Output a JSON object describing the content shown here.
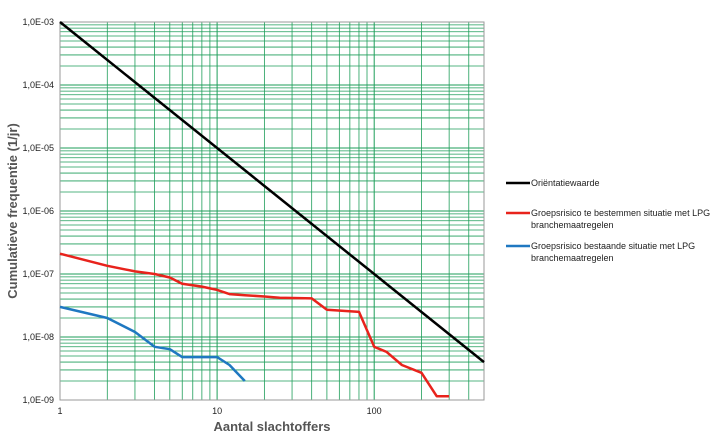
{
  "chart_data": {
    "type": "line",
    "title": "",
    "xlabel": "Aantal slachtoffers",
    "ylabel": "Cumulatieve frequentie (1/jr)",
    "x_scale": "log",
    "y_scale": "log",
    "xlim": [
      1,
      500
    ],
    "ylim": [
      1e-09,
      0.001
    ],
    "grid": true,
    "legend_position": "right",
    "x_tick_labels": [
      {
        "value": 1,
        "label": "1"
      },
      {
        "value": 10,
        "label": "10"
      },
      {
        "value": 100,
        "label": "100"
      }
    ],
    "y_tick_labels": [
      {
        "value": 0.001,
        "label": "1,0E-03"
      },
      {
        "value": 0.0001,
        "label": "1,0E-04"
      },
      {
        "value": 1e-05,
        "label": "1,0E-05"
      },
      {
        "value": 1e-06,
        "label": "1,0E-06"
      },
      {
        "value": 1e-07,
        "label": "1,0E-07"
      },
      {
        "value": 1e-08,
        "label": "1,0E-08"
      },
      {
        "value": 1e-09,
        "label": "1,0E-09"
      }
    ],
    "colors": {
      "grid": "#1e9e5a",
      "frame": "#9a9a9a"
    },
    "series": [
      {
        "name": "Oriëntatiewaarde",
        "legend_lines": [
          "Oriëntatiewaarde"
        ],
        "color": "#000000",
        "points": [
          [
            1,
            0.001
          ],
          [
            500,
            4e-09
          ]
        ]
      },
      {
        "name": "Groepsrisico te bestemmen situatie met LPG branchemaatregelen",
        "legend_lines": [
          "Groepsrisico te bestemmen situatie met LPG",
          "branchemaatregelen"
        ],
        "color": "#e8231c",
        "points": [
          [
            1,
            2.1e-07
          ],
          [
            2,
            1.35e-07
          ],
          [
            3,
            1.1e-07
          ],
          [
            4,
            1e-07
          ],
          [
            5,
            8.8e-08
          ],
          [
            6,
            7e-08
          ],
          [
            8,
            6.3e-08
          ],
          [
            10,
            5.6e-08
          ],
          [
            12,
            4.8e-08
          ],
          [
            15,
            4.6e-08
          ],
          [
            20,
            4.4e-08
          ],
          [
            25,
            4.2e-08
          ],
          [
            40,
            4.1e-08
          ],
          [
            50,
            2.7e-08
          ],
          [
            80,
            2.5e-08
          ],
          [
            100,
            7e-09
          ],
          [
            120,
            5.8e-09
          ],
          [
            150,
            3.6e-09
          ],
          [
            200,
            2.7e-09
          ],
          [
            250,
            1.15e-09
          ],
          [
            300,
            1.15e-09
          ]
        ]
      },
      {
        "name": "Groepsrisico bestaande situatie met LPG branchemaatregelen",
        "legend_lines": [
          "Groepsrisico bestaande situatie met LPG",
          "branchemaatregelen"
        ],
        "color": "#1f78c1",
        "points": [
          [
            1,
            3e-08
          ],
          [
            2,
            2e-08
          ],
          [
            3,
            1.2e-08
          ],
          [
            4,
            7e-09
          ],
          [
            5,
            6.4e-09
          ],
          [
            6,
            4.8e-09
          ],
          [
            8,
            4.8e-09
          ],
          [
            10,
            4.8e-09
          ],
          [
            12,
            3.6e-09
          ],
          [
            15,
            2e-09
          ]
        ]
      }
    ]
  }
}
